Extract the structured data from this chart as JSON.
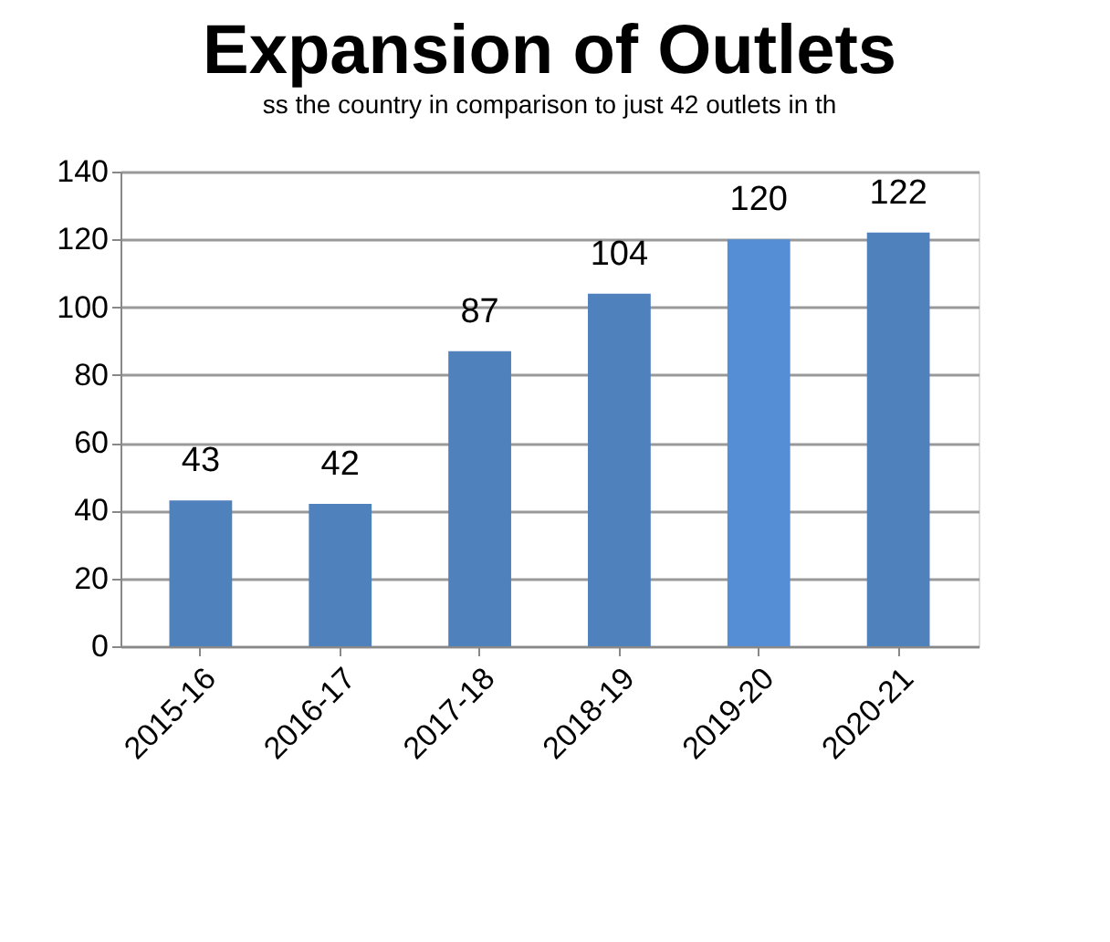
{
  "chart_data": {
    "type": "bar",
    "title": "Expansion of Outlets",
    "categories": [
      "2015-16",
      "2016-17",
      "2017-18",
      "2018-19",
      "2019-20",
      "2020-21"
    ],
    "values": [
      43,
      42,
      87,
      104,
      120,
      122
    ],
    "colors": [
      "#4f81bd",
      "#4f81bd",
      "#4f81bd",
      "#4f81bd",
      "#558ed5",
      "#4f81bd"
    ],
    "ylim": [
      0,
      140
    ],
    "yticks": [
      0,
      20,
      40,
      60,
      80,
      100,
      120,
      140
    ],
    "grid": "y",
    "data_labels": true,
    "annotations": [
      "ss the country in comparison to just 42 outlets in th"
    ]
  }
}
